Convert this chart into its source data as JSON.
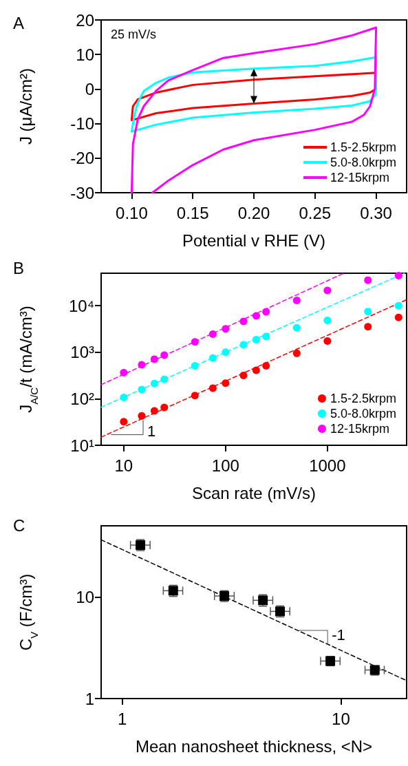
{
  "chart_data": [
    {
      "type": "line",
      "title": "A",
      "xlabel": "Potential v RHE (V)",
      "ylabel": "J (μA/cm²)",
      "annotations": [
        "25 mV/s"
      ],
      "xlim": [
        0.075,
        0.325
      ],
      "xticks": [
        {
          "value": 0.1,
          "label": "0.10"
        },
        {
          "value": 0.15,
          "label": "0.15"
        },
        {
          "value": 0.2,
          "label": "0.20"
        },
        {
          "value": 0.25,
          "label": "0.25"
        },
        {
          "value": 0.3,
          "label": "0.30"
        }
      ],
      "ylim": [
        -30,
        20
      ],
      "yticks": [
        -30,
        -20,
        -10,
        0,
        10,
        20
      ],
      "grid": false,
      "legend": "bottom right",
      "marker": "none",
      "line_style": "solid",
      "series": [
        {
          "name": "1.5-2.5krpm",
          "color": "#ff0000",
          "x": [
            0.1,
            0.101,
            0.105,
            0.12,
            0.15,
            0.2,
            0.25,
            0.3,
            0.2998,
            0.295,
            0.28,
            0.25,
            0.2,
            0.15,
            0.12,
            0.105,
            0.1005
          ],
          "values": [
            -9,
            -5,
            -3,
            -1,
            1.2,
            2.7,
            3.7,
            4.7,
            0,
            -1,
            -2,
            -3,
            -4.2,
            -5.5,
            -7,
            -8.5,
            -9
          ]
        },
        {
          "name": "5.0-8.0krpm",
          "color": "#00ffff",
          "x": [
            0.1,
            0.102,
            0.105,
            0.11,
            0.12,
            0.13,
            0.15,
            0.2,
            0.25,
            0.28,
            0.3,
            0.2998,
            0.295,
            0.28,
            0.25,
            0.2,
            0.15,
            0.12,
            0.105,
            0.1005
          ],
          "values": [
            -12.3,
            -8,
            -4,
            -0.5,
            1.8,
            3.3,
            4.8,
            5.9,
            6.7,
            8,
            9.2,
            -1.5,
            -3.5,
            -4.8,
            -5.7,
            -6.8,
            -8.3,
            -10.3,
            -11.8,
            -12.3
          ]
        },
        {
          "name": "12-15krpm",
          "color": "#ff00ff",
          "x": [
            0.1,
            0.101,
            0.105,
            0.11,
            0.12,
            0.13,
            0.15,
            0.175,
            0.2,
            0.25,
            0.28,
            0.3,
            0.299,
            0.295,
            0.29,
            0.28,
            0.25,
            0.2,
            0.175,
            0.15,
            0.13,
            0.117
          ],
          "values": [
            -30,
            -16,
            -8.7,
            -4.9,
            -0.5,
            2.5,
            5.5,
            9,
            10.4,
            13,
            15.5,
            17.8,
            0,
            -5,
            -7.5,
            -9.5,
            -11.8,
            -14.8,
            -17.5,
            -22,
            -26.5,
            -30
          ]
        }
      ]
    },
    {
      "type": "scatter",
      "title": "B",
      "xlabel": "Scan rate (mV/s)",
      "ylabel": "J$_{A/C}$/t (mA/cm³)",
      "annotations": [
        {
          "text": "1",
          "x": 15.5,
          "y": 37
        }
      ],
      "log": "xy",
      "xlim": [
        6,
        6000
      ],
      "xticks": [
        10,
        100,
        1000
      ],
      "ylim": [
        10,
        50000
      ],
      "yticks": [
        {
          "value": 10,
          "label": "10¹"
        },
        {
          "value": 100,
          "label": "10²"
        },
        {
          "value": 1000,
          "label": "10³"
        },
        {
          "value": 10000,
          "label": "10⁴"
        }
      ],
      "grid": false,
      "legend": "bottom right",
      "series": [
        {
          "name": "1.5-2.5krpm",
          "marker": "circle",
          "color": "#ff0000",
          "x": [
            10,
            15,
            20,
            25,
            50,
            75,
            100,
            150,
            200,
            250,
            500,
            1000,
            2500,
            5000
          ],
          "values": [
            32,
            43,
            55,
            65,
            117,
            169,
            217,
            318,
            409,
            511,
            949,
            1740,
            3540,
            5610
          ]
        },
        {
          "name": "5.0-8.0krpm",
          "marker": "circle",
          "color": "#00ffff",
          "x": [
            10,
            15,
            20,
            25,
            50,
            75,
            100,
            150,
            200,
            250,
            500,
            1000,
            2500,
            5000
          ],
          "values": [
            107,
            158,
            212,
            261,
            511,
            748,
            1000,
            1450,
            1860,
            2170,
            3360,
            4850,
            7490,
            10000
          ]
        },
        {
          "name": "12-15krpm",
          "marker": "circle",
          "color": "#ff00ff",
          "x": [
            10,
            15,
            20,
            25,
            50,
            75,
            100,
            150,
            200,
            250,
            500,
            1000,
            2500,
            5000
          ],
          "values": [
            363,
            538,
            710,
            865,
            1670,
            2450,
            3180,
            4600,
            6060,
            7390,
            13000,
            21400,
            35400,
            44300
          ]
        },
        {
          "type": "line",
          "line_style": "dashed",
          "color": "#ff0000",
          "x": [
            6,
            6000
          ],
          "values": [
            15,
            13500
          ]
        },
        {
          "type": "line",
          "line_style": "dashed",
          "color": "#00ffff",
          "x": [
            6,
            5700
          ],
          "values": [
            66,
            50000
          ]
        },
        {
          "type": "line",
          "line_style": "dashed",
          "color": "#ff00ff",
          "x": [
            6,
            1450
          ],
          "values": [
            201,
            50000
          ]
        }
      ]
    },
    {
      "type": "scatter",
      "title": "C",
      "xlabel": "Mean nanosheet thickness, <N>",
      "ylabel": "C$_{V}$ (F/cm³)",
      "annotations": [
        {
          "text": "-1",
          "x": 8.7,
          "y": 3.4
        }
      ],
      "log": "xy",
      "xlim": [
        0.8,
        20
      ],
      "xticks": [
        1,
        10
      ],
      "ylim": [
        1,
        50
      ],
      "yticks": [
        1,
        10
      ],
      "grid": false,
      "legend": false,
      "series": [
        {
          "color": "#000000",
          "marker": "square",
          "x": [
            1.21,
            1.71,
            2.93,
            4.4,
            5.27,
            8.95,
            14.3
          ],
          "values": [
            32.3,
            11.5,
            10.2,
            9.25,
            7.2,
            2.34,
            1.91
          ],
          "errors": [
            [
              28.5,
              36.6
            ],
            [
              10.1,
              13.0
            ],
            [
              9.0,
              11.5
            ],
            [
              8.1,
              10.5
            ],
            [
              6.35,
              8.15
            ],
            [
              2.1,
              2.6
            ],
            [
              1.7,
              2.1
            ]
          ],
          "xerrors": [
            [
              1.09,
              1.34
            ],
            [
              1.54,
              1.89
            ],
            [
              2.64,
              3.25
            ],
            [
              3.97,
              4.88
            ],
            [
              4.76,
              5.84
            ],
            [
              8.08,
              9.92
            ],
            [
              12.9,
              15.8
            ]
          ]
        },
        {
          "type": "line",
          "line_style": "dashed",
          "color": "#000000",
          "x": [
            0.8,
            20
          ],
          "values": [
            36.4,
            1.5
          ]
        }
      ]
    }
  ]
}
